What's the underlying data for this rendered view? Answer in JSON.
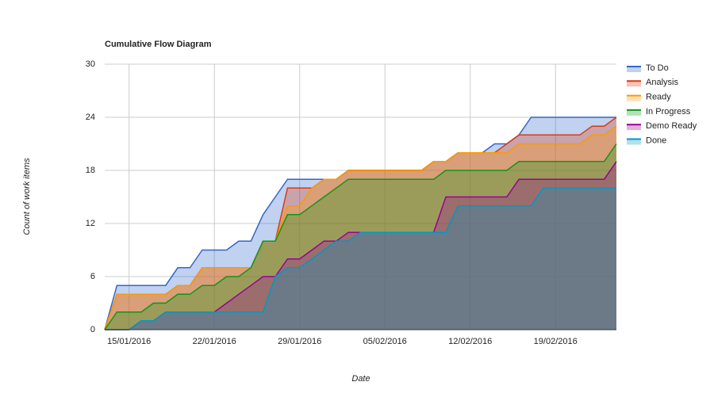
{
  "chart_data": {
    "type": "area",
    "title": "Cumulative Flow Diagram",
    "x_label": "Date",
    "y_label": "Count of work items",
    "x": [
      "2016-01-13",
      "2016-01-14",
      "2016-01-15",
      "2016-01-16",
      "2016-01-17",
      "2016-01-18",
      "2016-01-19",
      "2016-01-20",
      "2016-01-21",
      "2016-01-22",
      "2016-01-23",
      "2016-01-24",
      "2016-01-25",
      "2016-01-26",
      "2016-01-27",
      "2016-01-28",
      "2016-01-29",
      "2016-01-30",
      "2016-01-31",
      "2016-02-01",
      "2016-02-02",
      "2016-02-03",
      "2016-02-04",
      "2016-02-05",
      "2016-02-06",
      "2016-02-07",
      "2016-02-08",
      "2016-02-09",
      "2016-02-10",
      "2016-02-11",
      "2016-02-12",
      "2016-02-13",
      "2016-02-14",
      "2016-02-15",
      "2016-02-16",
      "2016-02-17",
      "2016-02-18",
      "2016-02-19",
      "2016-02-20",
      "2016-02-21",
      "2016-02-22",
      "2016-02-23",
      "2016-02-24"
    ],
    "xlim": [
      "2016-01-13",
      "2016-02-24"
    ],
    "xticks": [
      {
        "value": "2016-01-15",
        "label": "15/01/2016"
      },
      {
        "value": "2016-01-22",
        "label": "22/01/2016"
      },
      {
        "value": "2016-01-29",
        "label": "29/01/2016"
      },
      {
        "value": "2016-02-05",
        "label": "05/02/2016"
      },
      {
        "value": "2016-02-12",
        "label": "12/02/2016"
      },
      {
        "value": "2016-02-19",
        "label": "19/02/2016"
      }
    ],
    "ylim": [
      0,
      30
    ],
    "yticks": [
      0,
      6,
      12,
      18,
      24,
      30
    ],
    "grid": true,
    "legend": "right",
    "series": [
      {
        "name": "To Do",
        "color": "#3366cc",
        "values": [
          0,
          5,
          5,
          5,
          5,
          5,
          7,
          7,
          9,
          9,
          9,
          10,
          10,
          13,
          15,
          17,
          17,
          17,
          17,
          17,
          18,
          18,
          18,
          18,
          18,
          18,
          18,
          19,
          19,
          20,
          20,
          20,
          21,
          21,
          22,
          24,
          24,
          24,
          24,
          24,
          24,
          24,
          24
        ]
      },
      {
        "name": "Analysis",
        "color": "#dc3912",
        "values": [
          0,
          4,
          4,
          4,
          4,
          4,
          5,
          5,
          7,
          7,
          7,
          7,
          7,
          10,
          10,
          16,
          16,
          16,
          17,
          17,
          18,
          18,
          18,
          18,
          18,
          18,
          18,
          19,
          19,
          20,
          20,
          20,
          20,
          21,
          22,
          22,
          22,
          22,
          22,
          22,
          23,
          23,
          24
        ]
      },
      {
        "name": "Ready",
        "color": "#ff9900",
        "values": [
          0,
          4,
          4,
          4,
          4,
          4,
          5,
          5,
          7,
          7,
          7,
          7,
          7,
          10,
          10,
          14,
          14,
          16,
          17,
          17,
          18,
          18,
          18,
          18,
          18,
          18,
          18,
          19,
          19,
          20,
          20,
          20,
          20,
          20,
          21,
          21,
          21,
          21,
          21,
          21,
          22,
          22,
          23
        ]
      },
      {
        "name": "In Progress",
        "color": "#109618",
        "values": [
          0,
          2,
          2,
          2,
          3,
          3,
          4,
          4,
          5,
          5,
          6,
          6,
          7,
          10,
          10,
          13,
          13,
          14,
          15,
          16,
          17,
          17,
          17,
          17,
          17,
          17,
          17,
          17,
          18,
          18,
          18,
          18,
          18,
          18,
          19,
          19,
          19,
          19,
          19,
          19,
          19,
          19,
          21
        ]
      },
      {
        "name": "Demo Ready",
        "color": "#990099",
        "values": [
          0,
          0,
          0,
          1,
          1,
          2,
          2,
          2,
          2,
          2,
          3,
          4,
          5,
          6,
          6,
          8,
          8,
          9,
          10,
          10,
          11,
          11,
          11,
          11,
          11,
          11,
          11,
          11,
          15,
          15,
          15,
          15,
          15,
          15,
          17,
          17,
          17,
          17,
          17,
          17,
          17,
          17,
          19
        ]
      },
      {
        "name": "Done",
        "color": "#0099c6",
        "values": [
          0,
          0,
          0,
          1,
          1,
          2,
          2,
          2,
          2,
          2,
          2,
          2,
          2,
          2,
          6,
          7,
          7,
          8,
          9,
          10,
          10,
          11,
          11,
          11,
          11,
          11,
          11,
          11,
          11,
          14,
          14,
          14,
          14,
          14,
          14,
          14,
          16,
          16,
          16,
          16,
          16,
          16,
          16
        ]
      }
    ]
  }
}
